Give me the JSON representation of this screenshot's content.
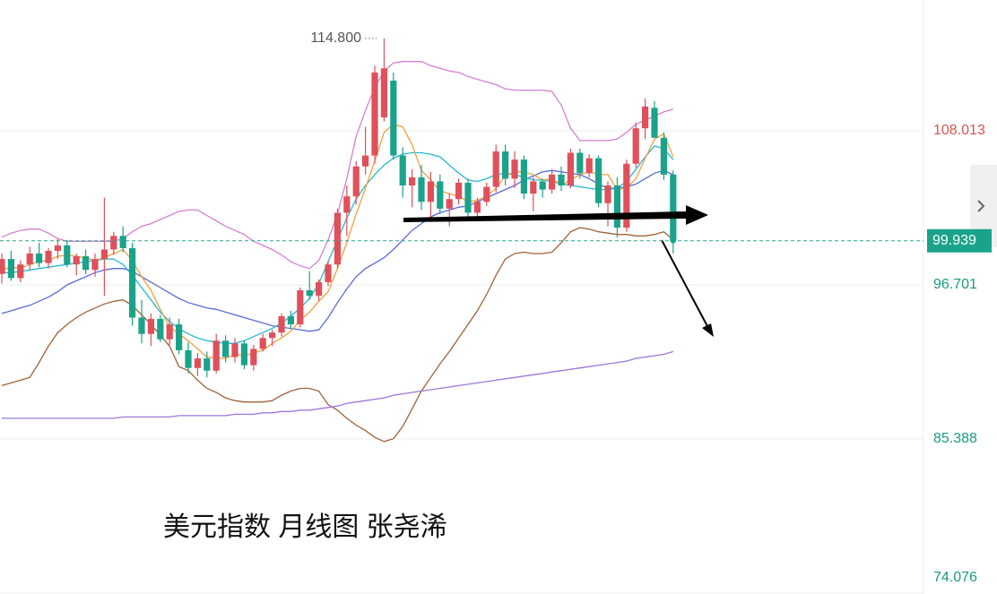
{
  "chart_data": {
    "type": "candlestick",
    "title": "美元指数 月线图 张尧浠",
    "categories": [
      null,
      null,
      null,
      null,
      null,
      null,
      null,
      null,
      null,
      null,
      null,
      null,
      null,
      null,
      null,
      null,
      null,
      null,
      null,
      null,
      null,
      null,
      null,
      null,
      null,
      null,
      null,
      null,
      null,
      null,
      null,
      null,
      null,
      null,
      null,
      null,
      null,
      null,
      null,
      null,
      null,
      null,
      null,
      null,
      null,
      null,
      null,
      null,
      null,
      null,
      null,
      null,
      null,
      null,
      null,
      null,
      null,
      null,
      null,
      null,
      null,
      null,
      null,
      null,
      null,
      null,
      null,
      null,
      null,
      null,
      null,
      null,
      null
    ],
    "candles": {
      "open": [
        97.5,
        98.6,
        97.2,
        98.2,
        99.0,
        98.3,
        99.2,
        99.6,
        98.2,
        98.8,
        97.8,
        98.6,
        99.3,
        100.3,
        99.4,
        94.3,
        93.1,
        94.2,
        92.7,
        93.8,
        91.9,
        90.6,
        91.3,
        90.4,
        92.6,
        91.4,
        92.4,
        90.8,
        92.0,
        92.8,
        93.2,
        94.4,
        93.8,
        96.3,
        95.9,
        96.9,
        98.2,
        102.0,
        103.2,
        105.4,
        106.2,
        109.0,
        111.7,
        106.2,
        104.0,
        104.6,
        102.8,
        104.3,
        102.3,
        103.0,
        104.2,
        102.0,
        102.8,
        103.9,
        106.5,
        104.5,
        105.9,
        103.4,
        104.3,
        103.7,
        104.8,
        104.0,
        106.4,
        104.9,
        106.0,
        102.7,
        104.0,
        100.9,
        105.6,
        108.2,
        109.7,
        107.5,
        104.8
      ],
      "high": [
        99.0,
        99.2,
        98.5,
        99.5,
        99.8,
        99.4,
        100.1,
        100.0,
        99.0,
        99.3,
        99.0,
        103.1,
        100.6,
        101.0,
        99.8,
        95.6,
        94.6,
        94.5,
        94.3,
        94.2,
        92.5,
        91.7,
        91.8,
        93.1,
        93.0,
        92.8,
        92.6,
        92.3,
        93.1,
        93.4,
        94.6,
        94.8,
        96.5,
        97.7,
        97.1,
        98.5,
        102.3,
        104.0,
        105.8,
        108.3,
        112.8,
        114.8,
        112.3,
        106.8,
        105.2,
        105.5,
        105.0,
        104.8,
        103.4,
        104.5,
        104.5,
        103.1,
        104.2,
        107.0,
        107.0,
        106.5,
        106.2,
        104.6,
        104.5,
        105.2,
        105.4,
        106.7,
        106.7,
        106.3,
        106.2,
        104.3,
        104.6,
        105.9,
        108.6,
        110.4,
        110.2,
        107.9,
        105.1
      ],
      "low": [
        96.8,
        97.0,
        96.9,
        97.8,
        98.0,
        97.9,
        98.6,
        98.0,
        97.4,
        97.5,
        97.3,
        95.9,
        98.9,
        99.1,
        93.7,
        92.4,
        92.2,
        92.5,
        92.3,
        91.6,
        90.2,
        90.0,
        89.9,
        90.2,
        91.0,
        91.0,
        90.5,
        90.4,
        91.8,
        92.2,
        92.9,
        93.5,
        93.6,
        95.6,
        95.5,
        96.6,
        97.9,
        100.3,
        102.6,
        104.8,
        105.6,
        108.7,
        105.9,
        103.1,
        102.4,
        102.2,
        101.6,
        101.9,
        101.0,
        102.6,
        101.7,
        101.5,
        102.5,
        103.5,
        104.0,
        103.8,
        103.0,
        102.1,
        103.1,
        103.4,
        103.6,
        103.8,
        104.5,
        104.6,
        102.4,
        101.0,
        100.2,
        100.6,
        105.3,
        107.4,
        107.6,
        104.4,
        99.0
      ],
      "close": [
        98.6,
        97.2,
        98.2,
        99.0,
        98.3,
        99.2,
        99.6,
        98.2,
        98.8,
        97.8,
        98.6,
        99.3,
        100.3,
        99.4,
        94.3,
        93.1,
        94.2,
        92.7,
        93.8,
        91.9,
        90.6,
        91.3,
        90.4,
        92.6,
        91.4,
        92.4,
        90.8,
        92.0,
        92.8,
        93.2,
        94.4,
        93.8,
        96.3,
        95.9,
        96.9,
        98.2,
        102.0,
        103.2,
        105.4,
        106.2,
        112.3,
        112.6,
        106.2,
        104.0,
        104.6,
        102.8,
        104.3,
        102.3,
        103.0,
        104.2,
        102.0,
        102.8,
        103.9,
        106.5,
        104.5,
        105.9,
        103.4,
        104.3,
        103.7,
        104.8,
        104.0,
        106.4,
        104.9,
        106.0,
        102.7,
        104.0,
        100.9,
        105.6,
        108.2,
        109.8,
        107.5,
        104.8,
        99.939
      ]
    },
    "up_color": "#e0505a",
    "down_color": "#1aa38a",
    "series": [
      {
        "color": "#d77fcf",
        "values": [
          100.2,
          100.5,
          100.7,
          100.8,
          100.8,
          100.5,
          100.1,
          99.9,
          99.9,
          99.9,
          99.9,
          99.9,
          99.9,
          100.1,
          100.6,
          101.0,
          101.2,
          101.5,
          101.8,
          102.1,
          102.2,
          102.2,
          101.8,
          101.4,
          101.0,
          100.7,
          100.4,
          99.9,
          99.6,
          99.3,
          98.9,
          98.4,
          98.1,
          97.9,
          98.5,
          100.0,
          101.9,
          104.5,
          107.6,
          109.5,
          111.2,
          112.4,
          113.0,
          113.1,
          113.1,
          113.1,
          112.8,
          112.6,
          112.4,
          112.3,
          112.0,
          111.8,
          111.6,
          111.4,
          111.1,
          111.0,
          111.0,
          111.0,
          111.0,
          110.9,
          109.9,
          108.2,
          107.3,
          107.3,
          107.3,
          107.3,
          107.4,
          107.9,
          108.5,
          108.8,
          109.1,
          109.4,
          109.6
        ]
      },
      {
        "color": "#a0623a",
        "values": [
          89.3,
          89.5,
          89.7,
          89.9,
          91.0,
          92.2,
          93.2,
          93.8,
          94.3,
          94.7,
          95.0,
          95.3,
          95.5,
          95.6,
          95.2,
          94.5,
          93.8,
          93.0,
          92.2,
          90.7,
          90.4,
          89.7,
          89.1,
          88.8,
          88.4,
          88.2,
          88.1,
          88.1,
          88.1,
          88.2,
          88.6,
          88.9,
          89.1,
          89.1,
          88.9,
          87.9,
          87.5,
          86.9,
          86.4,
          86.0,
          85.5,
          85.2,
          85.4,
          86.3,
          87.6,
          88.9,
          89.9,
          90.9,
          91.8,
          92.8,
          93.8,
          94.8,
          96.0,
          97.4,
          98.6,
          99.0,
          99.1,
          99.0,
          99.0,
          99.1,
          99.8,
          100.6,
          100.9,
          100.8,
          100.6,
          100.5,
          100.4,
          100.4,
          100.3,
          100.3,
          100.4,
          100.6,
          100.0
        ]
      },
      {
        "color": "#5a6ad8",
        "values": [
          94.6,
          94.8,
          95.0,
          95.2,
          95.5,
          95.8,
          96.2,
          96.7,
          97.0,
          97.3,
          97.6,
          97.8,
          97.9,
          97.9,
          97.7,
          97.3,
          96.9,
          96.5,
          96.1,
          95.7,
          95.4,
          95.2,
          95.0,
          94.9,
          94.7,
          94.5,
          94.3,
          94.1,
          93.9,
          93.7,
          93.6,
          93.5,
          93.4,
          93.3,
          93.4,
          94.3,
          95.4,
          96.4,
          97.3,
          97.9,
          98.3,
          98.7,
          99.3,
          100.0,
          100.7,
          101.2,
          101.7,
          102.0,
          102.2,
          102.4,
          102.5,
          102.8,
          103.1,
          103.4,
          103.7,
          104.0,
          104.4,
          104.7,
          105.0,
          105.1,
          105.0,
          104.9,
          104.8,
          104.5,
          104.1,
          103.8,
          103.8,
          103.9,
          104.1,
          104.5,
          104.9,
          105.1,
          104.8
        ]
      },
      {
        "color": "#26b8d0",
        "values": [
          97.6,
          97.6,
          97.7,
          97.8,
          97.9,
          98.0,
          98.1,
          98.2,
          98.3,
          98.4,
          98.5,
          98.6,
          98.6,
          98.2,
          97.4,
          96.5,
          95.6,
          94.7,
          94.0,
          93.5,
          93.1,
          92.8,
          92.6,
          92.5,
          92.4,
          92.4,
          92.6,
          92.9,
          93.2,
          93.5,
          93.9,
          94.4,
          95.0,
          95.7,
          96.8,
          98.4,
          100.0,
          101.6,
          103.0,
          104.0,
          104.8,
          105.5,
          106.0,
          106.3,
          106.4,
          106.4,
          106.3,
          106.1,
          105.5,
          104.9,
          104.4,
          104.3,
          104.5,
          104.8,
          104.9,
          104.8,
          104.6,
          104.4,
          104.4,
          104.3,
          104.1,
          104.0,
          103.9,
          103.8,
          103.7,
          103.7,
          103.8,
          104.3,
          105.2,
          106.1,
          106.9,
          106.7,
          105.9
        ]
      },
      {
        "color": "#f0a040",
        "values": [
          97.8,
          98.0,
          97.9,
          98.2,
          98.4,
          98.5,
          98.8,
          98.9,
          98.8,
          98.7,
          98.5,
          98.7,
          99.0,
          99.3,
          98.5,
          97.3,
          96.3,
          94.9,
          93.6,
          93.1,
          92.6,
          92.0,
          91.4,
          91.3,
          91.3,
          91.6,
          91.5,
          91.7,
          91.9,
          92.4,
          92.8,
          93.3,
          94.1,
          94.7,
          95.5,
          96.2,
          97.9,
          99.8,
          101.9,
          103.8,
          105.8,
          107.9,
          108.5,
          108.3,
          107.0,
          105.1,
          104.4,
          103.6,
          103.4,
          103.2,
          102.8,
          102.9,
          103.2,
          103.8,
          104.7,
          105.0,
          105.0,
          104.8,
          104.4,
          104.5,
          104.0,
          104.4,
          104.8,
          105.0,
          104.8,
          104.8,
          103.7,
          103.8,
          104.5,
          106.0,
          107.4,
          107.8,
          106.1
        ]
      },
      {
        "color": "#9a78d8",
        "values": [
          86.9,
          86.9,
          86.9,
          86.9,
          86.9,
          86.9,
          86.9,
          86.9,
          86.9,
          86.9,
          86.9,
          86.9,
          86.9,
          87.0,
          87.0,
          87.0,
          87.0,
          87.0,
          87.0,
          87.1,
          87.1,
          87.1,
          87.1,
          87.1,
          87.1,
          87.2,
          87.2,
          87.2,
          87.3,
          87.3,
          87.4,
          87.4,
          87.5,
          87.5,
          87.6,
          87.7,
          87.8,
          88.0,
          88.1,
          88.2,
          88.3,
          88.4,
          88.6,
          88.7,
          88.8,
          88.9,
          89.0,
          89.1,
          89.2,
          89.3,
          89.4,
          89.5,
          89.6,
          89.7,
          89.8,
          89.9,
          90.0,
          90.1,
          90.2,
          90.3,
          90.4,
          90.5,
          90.6,
          90.7,
          90.8,
          90.9,
          91.0,
          91.1,
          91.3,
          91.4,
          91.5,
          91.6,
          91.8
        ]
      }
    ],
    "ylim": [
      74.0,
      117.62
    ],
    "yticks": [
      108.013,
      96.701,
      85.388,
      74.076
    ],
    "grid": true,
    "current_price": 99.939,
    "high_annotation": {
      "value": 114.8,
      "label": "114.800"
    }
  }
}
